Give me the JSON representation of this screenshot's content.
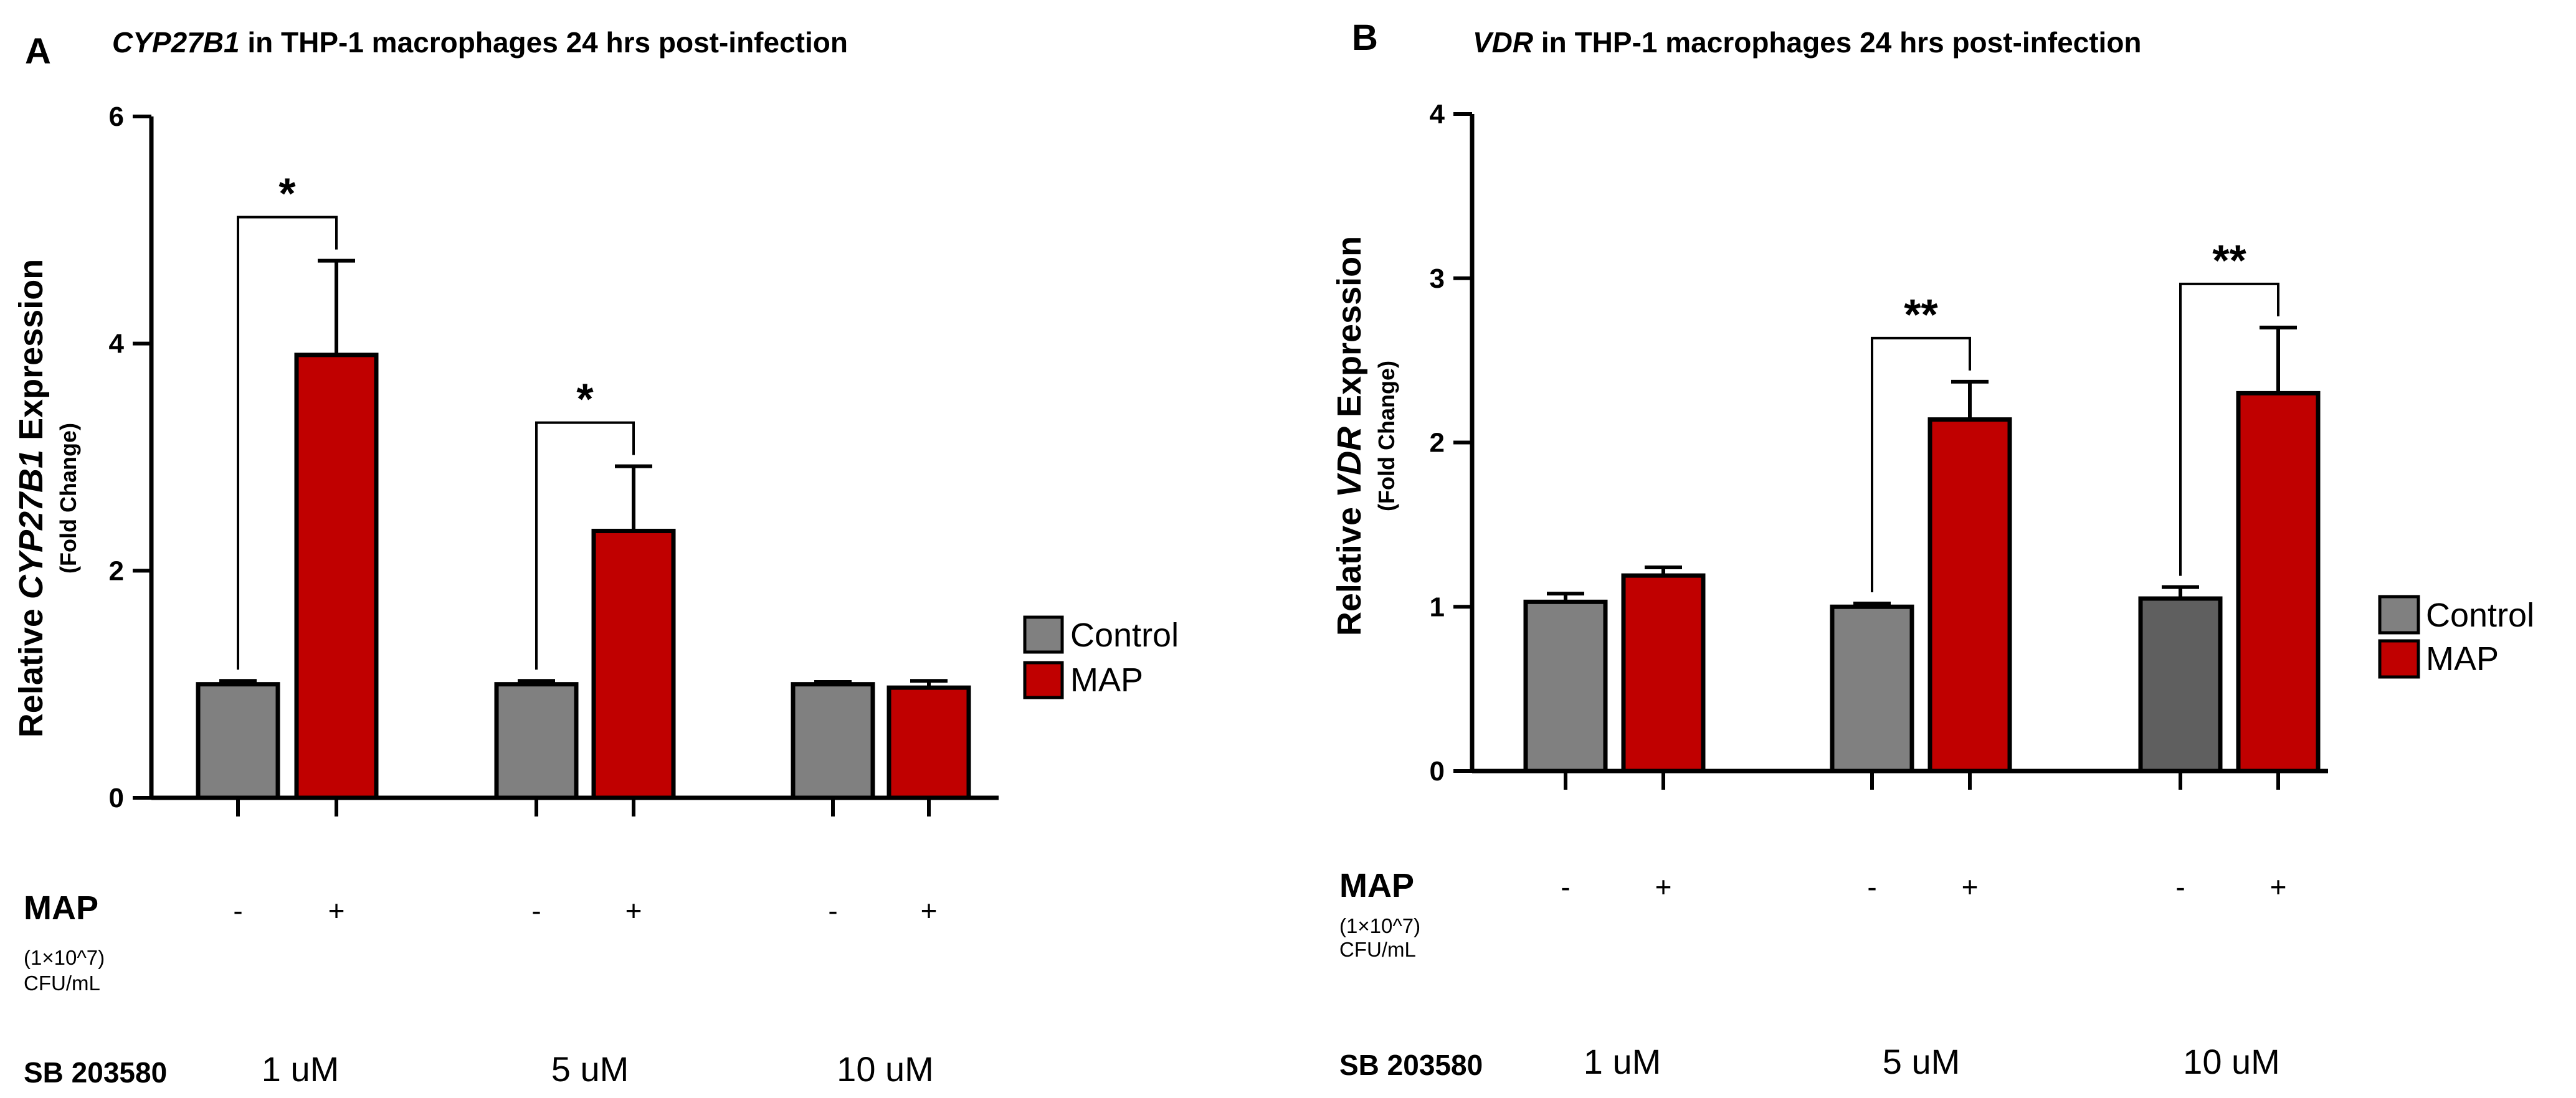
{
  "chart_data": [
    {
      "panel": "A",
      "type": "bar",
      "title_gene": "CYP27B1",
      "title_rest": " in THP-1 macrophages 24 hrs post-infection",
      "ylabel_prefix": "Relative ",
      "ylabel_gene": "CYP27B1",
      "ylabel_suffix": " Expression",
      "ylabel_sub": "(Fold Change)",
      "ylim": [
        0,
        6
      ],
      "yticks": [
        0,
        2,
        4,
        6
      ],
      "categories": [
        "1 uM",
        "5 uM",
        "10 uM"
      ],
      "series": [
        {
          "name": "Control",
          "values": [
            1.0,
            1.0,
            1.0
          ],
          "errors": [
            0.03,
            0.03,
            0.02
          ]
        },
        {
          "name": "MAP",
          "values": [
            3.9,
            2.35,
            0.97
          ],
          "errors": [
            0.83,
            0.57,
            0.06
          ]
        }
      ],
      "significance": [
        "*",
        "*",
        ""
      ],
      "legend": [
        "Control",
        "MAP"
      ]
    },
    {
      "panel": "B",
      "type": "bar",
      "title_gene": "VDR",
      "title_rest": " in THP-1 macrophages 24 hrs post-infection",
      "ylabel_prefix": "Relative ",
      "ylabel_gene": "VDR",
      "ylabel_suffix": " Expression",
      "ylabel_sub": "(Fold Change)",
      "ylim": [
        0,
        4
      ],
      "yticks": [
        0,
        1,
        2,
        3,
        4
      ],
      "categories": [
        "1 uM",
        "5 uM",
        "10 uM"
      ],
      "series": [
        {
          "name": "Control",
          "values": [
            1.03,
            1.0,
            1.05
          ],
          "errors": [
            0.05,
            0.02,
            0.07
          ]
        },
        {
          "name": "MAP",
          "values": [
            1.19,
            2.14,
            2.3
          ],
          "errors": [
            0.05,
            0.23,
            0.4
          ]
        }
      ],
      "significance": [
        "",
        "**",
        "**"
      ],
      "legend": [
        "Control",
        "MAP"
      ]
    }
  ],
  "treatment_labels": {
    "map_title": "MAP",
    "map_sub1": "(1×10^7)",
    "map_sub2": "CFU/mL",
    "minus": "-",
    "plus": "+",
    "sb_label": "SB 203580"
  },
  "colors": {
    "control": "#808080",
    "control_dark": "#5f5f5f",
    "map": "#c00000",
    "axis": "#000000"
  }
}
